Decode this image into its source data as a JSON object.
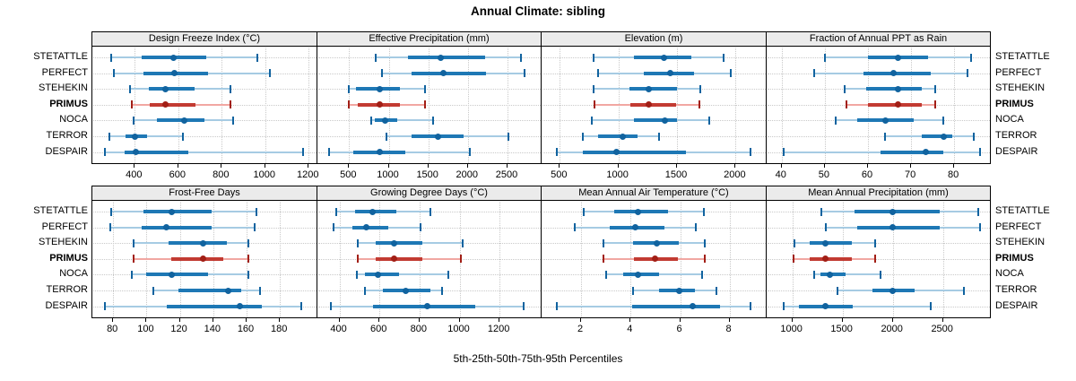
{
  "title": "Annual Climate: sibling",
  "caption": "5th-25th-50th-75th-95th Percentiles",
  "sites": [
    "STETATTLE",
    "PERFECT",
    "STEHEKIN",
    "PRIMUS",
    "NOCA",
    "TERROR",
    "DESPAIR"
  ],
  "highlight_site": "PRIMUS",
  "colors": {
    "blue_light": "#a6cbe3",
    "blue": "#1e78b5",
    "blue_dark": "#11639f",
    "red_light": "#f1a7a2",
    "red": "#c23b32",
    "red_dark": "#a21f16",
    "grid": "#c9c9c9",
    "strip_bg": "#ebebeb",
    "border": "#000000"
  },
  "chart_data": {
    "type": "dot-range",
    "note": "values per site are [5th, 25th, 50th, 75th, 95th] percentiles",
    "legend_position": "none",
    "grid": "dotted",
    "panels": [
      {
        "title": "Design Freeze Index (°C)",
        "row": 0,
        "col": 0,
        "xlim": [
          205,
          1240
        ],
        "ticks": [
          400,
          600,
          800,
          1000,
          1200
        ],
        "values": [
          [
            290,
            432,
            576,
            730,
            962
          ],
          [
            305,
            440,
            583,
            735,
            1021
          ],
          [
            380,
            465,
            540,
            675,
            840
          ],
          [
            385,
            470,
            540,
            678,
            838
          ],
          [
            395,
            503,
            627,
            722,
            854
          ],
          [
            285,
            358,
            400,
            458,
            623
          ],
          [
            262,
            352,
            403,
            645,
            1174
          ]
        ]
      },
      {
        "title": "Effective Precipitation (mm)",
        "row": 0,
        "col": 1,
        "xlim": [
          100,
          2930
        ],
        "ticks": [
          500,
          1000,
          1500,
          2000,
          2500
        ],
        "values": [
          [
            835,
            1240,
            1660,
            2220,
            2670
          ],
          [
            910,
            1290,
            1690,
            2230,
            2710
          ],
          [
            495,
            585,
            890,
            1140,
            1455
          ],
          [
            500,
            605,
            890,
            1145,
            1455
          ],
          [
            780,
            825,
            955,
            1110,
            1555
          ],
          [
            975,
            1290,
            1620,
            1945,
            2505
          ],
          [
            245,
            550,
            890,
            1215,
            2025
          ]
        ]
      },
      {
        "title": "Elevation (m)",
        "row": 0,
        "col": 2,
        "xlim": [
          345,
          2265
        ],
        "ticks": [
          500,
          1000,
          1500,
          2000
        ],
        "values": [
          [
            785,
            1135,
            1385,
            1620,
            1900
          ],
          [
            830,
            1220,
            1440,
            1645,
            1960
          ],
          [
            785,
            1095,
            1260,
            1500,
            1700
          ],
          [
            793,
            1100,
            1255,
            1493,
            1693
          ],
          [
            775,
            1130,
            1400,
            1500,
            1775
          ],
          [
            700,
            825,
            1035,
            1160,
            1350
          ],
          [
            475,
            700,
            985,
            1575,
            2125
          ]
        ]
      },
      {
        "title": "Fraction of Annual PPT as Rain",
        "row": 0,
        "col": 3,
        "xlim": [
          36.5,
          88.5
        ],
        "ticks": [
          40,
          50,
          60,
          70,
          80
        ],
        "values": [
          [
            50,
            60,
            67,
            74,
            84
          ],
          [
            47.5,
            59,
            66,
            74.5,
            83
          ],
          [
            54.5,
            59.5,
            67,
            72.5,
            75.5
          ],
          [
            55,
            60,
            67,
            72.5,
            75.5
          ],
          [
            52.5,
            57.5,
            64,
            70.5,
            77.5
          ],
          [
            64,
            72.5,
            77.5,
            79.5,
            84.5
          ],
          [
            40.5,
            63,
            73.5,
            77.5,
            86
          ]
        ]
      },
      {
        "title": "Frost-Free Days",
        "row": 1,
        "col": 0,
        "xlim": [
          67.5,
          202.5
        ],
        "ticks": [
          80,
          100,
          120,
          140,
          160,
          180
        ],
        "values": [
          [
            79,
            98,
            115,
            139,
            166
          ],
          [
            78,
            97,
            112,
            139,
            165
          ],
          [
            92,
            113,
            134,
            148,
            161
          ],
          [
            92,
            115,
            134,
            146,
            161
          ],
          [
            91,
            100,
            115,
            137,
            161
          ],
          [
            104,
            119,
            149,
            157,
            168
          ],
          [
            75,
            112,
            156,
            169,
            193
          ]
        ]
      },
      {
        "title": "Growing Degree Days (°C)",
        "row": 1,
        "col": 1,
        "xlim": [
          290,
          1410
        ],
        "ticks": [
          400,
          600,
          800,
          1000,
          1200
        ],
        "values": [
          [
            385,
            480,
            565,
            685,
            855
          ],
          [
            370,
            465,
            535,
            645,
            805
          ],
          [
            490,
            583,
            674,
            815,
            1015
          ],
          [
            492,
            580,
            674,
            815,
            1007
          ],
          [
            485,
            527,
            590,
            697,
            946
          ],
          [
            527,
            616,
            729,
            853,
            912
          ],
          [
            356,
            568,
            839,
            1077,
            1321
          ]
        ]
      },
      {
        "title": "Mean Annual Air Temperature (°C)",
        "row": 1,
        "col": 2,
        "xlim": [
          0.4,
          9.5
        ],
        "ticks": [
          2,
          4,
          6,
          8
        ],
        "values": [
          [
            2.1,
            3.35,
            4.3,
            5.5,
            6.95
          ],
          [
            1.75,
            3.15,
            4.2,
            5.35,
            6.65
          ],
          [
            2.9,
            4.1,
            5.05,
            5.95,
            7.0
          ],
          [
            2.9,
            4.15,
            5.0,
            5.9,
            7.0
          ],
          [
            3.0,
            3.7,
            4.3,
            5.15,
            6.9
          ],
          [
            4.1,
            5.15,
            5.95,
            6.6,
            7.45
          ],
          [
            1.0,
            4.05,
            6.5,
            7.6,
            8.85
          ]
        ]
      },
      {
        "title": "Mean Annual Precipitation (mm)",
        "row": 1,
        "col": 3,
        "xlim": [
          745,
          2975
        ],
        "ticks": [
          1000,
          1500,
          2000,
          2500
        ],
        "values": [
          [
            1290,
            1620,
            1995,
            2470,
            2850
          ],
          [
            1330,
            1645,
            2000,
            2465,
            2870
          ],
          [
            1020,
            1170,
            1330,
            1590,
            1825
          ],
          [
            1010,
            1170,
            1330,
            1595,
            1825
          ],
          [
            1215,
            1280,
            1375,
            1530,
            1880
          ],
          [
            1445,
            1795,
            2000,
            2220,
            2710
          ],
          [
            910,
            1070,
            1330,
            1600,
            2375
          ]
        ]
      }
    ]
  }
}
